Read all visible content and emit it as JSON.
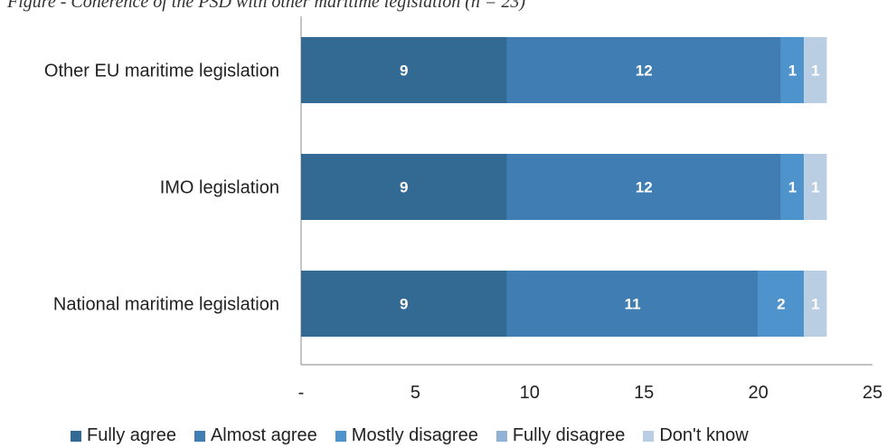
{
  "caption": "Figure - Coherence of the PSD with other maritime legislation (n = 23)",
  "chart_data": {
    "type": "bar",
    "orientation": "horizontal",
    "stacked": true,
    "categories": [
      "Other EU maritime legislation",
      "IMO legislation",
      "National maritime legislation"
    ],
    "series": [
      {
        "name": "Fully agree",
        "color": "#336a94",
        "values": [
          9,
          9,
          9
        ]
      },
      {
        "name": "Almost agree",
        "color": "#3f7db2",
        "values": [
          12,
          12,
          11
        ]
      },
      {
        "name": "Mostly disagree",
        "color": "#4e93cc",
        "values": [
          1,
          1,
          2
        ]
      },
      {
        "name": "Fully disagree",
        "color": "#8fb2d6",
        "values": [
          0,
          0,
          0
        ]
      },
      {
        "name": "Don't know",
        "color": "#b9cde3",
        "values": [
          1,
          1,
          1
        ]
      }
    ],
    "xticks": [
      "-",
      "5",
      "10",
      "15",
      "20",
      "25"
    ],
    "xlim": [
      0,
      25
    ],
    "legend_position": "bottom",
    "grid": false
  }
}
